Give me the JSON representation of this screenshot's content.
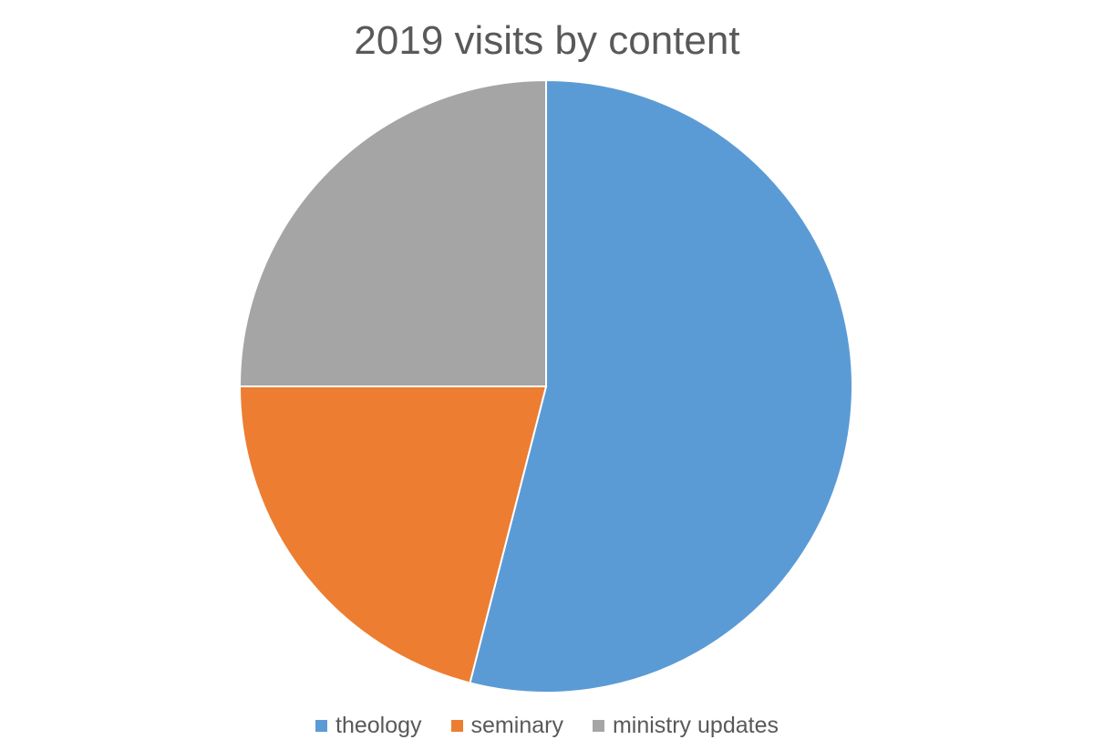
{
  "chart_data": {
    "type": "pie",
    "title": "2019 visits by content",
    "legend_position": "bottom",
    "slices": [
      {
        "label": "theology",
        "value": 54,
        "color": "#5B9BD5"
      },
      {
        "label": "seminary",
        "value": 21,
        "color": "#ED7D31"
      },
      {
        "label": "ministry updates",
        "value": 25,
        "color": "#A5A5A5"
      }
    ]
  }
}
